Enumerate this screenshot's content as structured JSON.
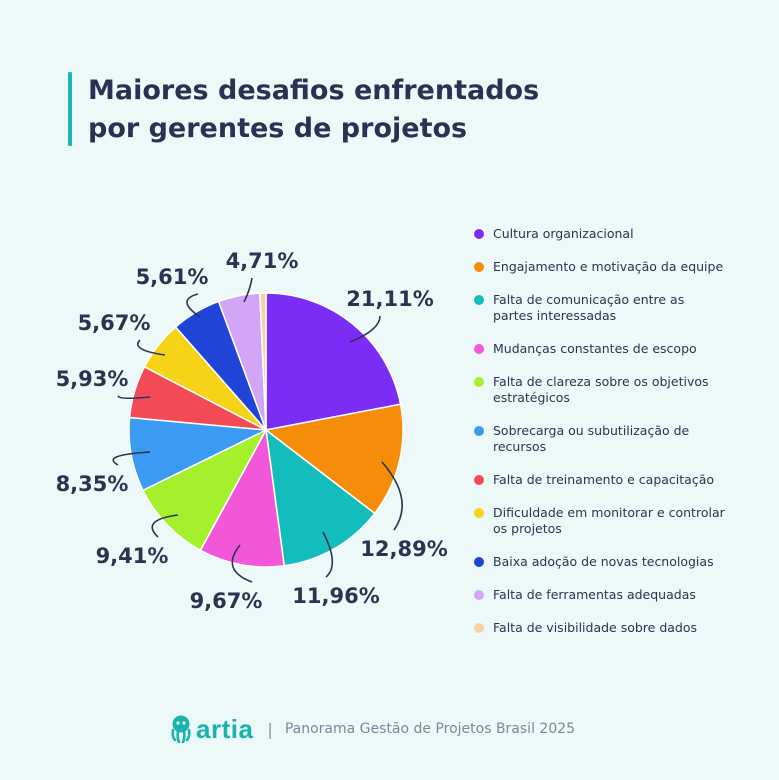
{
  "header": {
    "title_line1": "Maiores desafios enfrentados",
    "title_line2": "por gerentes de projetos"
  },
  "chart_data": {
    "type": "pie",
    "title": "Maiores desafios enfrentados por gerentes de projetos",
    "legend_position": "right",
    "slices": [
      {
        "category": "Cultura organizacional",
        "value": 21.11,
        "label": "21,11%",
        "color": "#7b2cf5"
      },
      {
        "category": "Engajamento e motivação da equipe",
        "value": 12.89,
        "label": "12,89%",
        "color": "#f58c0a"
      },
      {
        "category": "Falta de comunicação entre as partes interessadas",
        "value": 11.96,
        "label": "11,96%",
        "color": "#12bdbb"
      },
      {
        "category": "Mudanças constantes de escopo",
        "value": 9.67,
        "label": "9,67%",
        "color": "#f157d8"
      },
      {
        "category": "Falta de clareza sobre os objetivos estratégicos",
        "value": 9.41,
        "label": "9,41%",
        "color": "#a4f02c"
      },
      {
        "category": "Sobrecarga ou subutilização de recursos",
        "value": 8.35,
        "label": "8,35%",
        "color": "#3b9bf2"
      },
      {
        "category": "Falta de treinamento e capacitação",
        "value": 5.93,
        "label": "5,93%",
        "color": "#f34b55"
      },
      {
        "category": "Dificuldade em monitorar e controlar os projetos",
        "value": 5.67,
        "label": "5,67%",
        "color": "#f5d316"
      },
      {
        "category": "Baixa adoção de novas tecnologias",
        "value": 5.61,
        "label": "5,61%",
        "color": "#1f44d6"
      },
      {
        "category": "Falta de ferramentas adequadas",
        "value": 4.71,
        "label": "4,71%",
        "color": "#d3a5f7"
      },
      {
        "category": "Falta de visibilidade sobre dados",
        "value": 0.69,
        "label": "",
        "color": "#f6d2a4"
      }
    ]
  },
  "legend": {
    "items": [
      {
        "lines": [
          "Cultura organizacional"
        ],
        "color": "#7b2cf5"
      },
      {
        "lines": [
          "Engajamento e motivação da equipe"
        ],
        "color": "#f58c0a"
      },
      {
        "lines": [
          "Falta de comunicação entre as",
          "partes interessadas"
        ],
        "color": "#12bdbb"
      },
      {
        "lines": [
          "Mudanças constantes de escopo"
        ],
        "color": "#f157d8"
      },
      {
        "lines": [
          "Falta de clareza sobre os objetivos",
          "estratégicos"
        ],
        "color": "#a4f02c"
      },
      {
        "lines": [
          "Sobrecarga ou subutilização de",
          "recursos"
        ],
        "color": "#3b9bf2"
      },
      {
        "lines": [
          "Falta de treinamento e capacitação"
        ],
        "color": "#f34b55"
      },
      {
        "lines": [
          "Dificuldade em monitorar e controlar",
          "os projetos"
        ],
        "color": "#f5d316"
      },
      {
        "lines": [
          "Baixa adoção de novas tecnologias"
        ],
        "color": "#1f44d6"
      },
      {
        "lines": [
          "Falta de ferramentas adequadas"
        ],
        "color": "#d3a5f7"
      },
      {
        "lines": [
          "Falta de visibilidade sobre dados"
        ],
        "color": "#f6d2a4"
      }
    ]
  },
  "footer": {
    "brand": "artia",
    "separator": "|",
    "text": "Panorama Gestão de Projetos Brasil 2025"
  },
  "colors": {
    "background": "#edf9f9",
    "accent": "#19b8b4",
    "text": "#2b3350"
  }
}
